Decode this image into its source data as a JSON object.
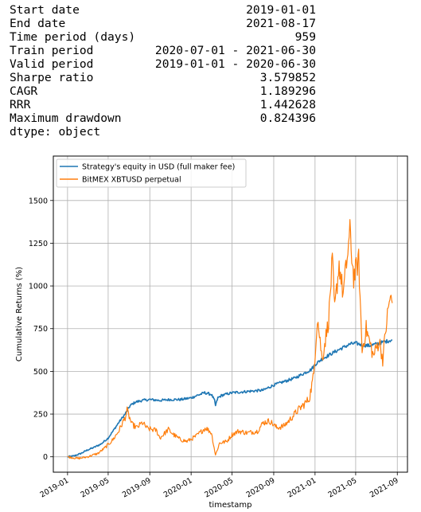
{
  "stats": {
    "rows": [
      {
        "label": "Start date",
        "value": "2019-01-01"
      },
      {
        "label": "End date",
        "value": "2021-08-17"
      },
      {
        "label": "Time period (days)",
        "value": "959"
      },
      {
        "label": "Train period",
        "value": "2020-07-01 - 2021-06-30"
      },
      {
        "label": "Valid period",
        "value": "2019-01-01 - 2020-06-30"
      },
      {
        "label": "Sharpe ratio",
        "value": "3.579852"
      },
      {
        "label": "CAGR",
        "value": "1.189296"
      },
      {
        "label": "RRR",
        "value": "1.442628"
      },
      {
        "label": "Maximum drawdown",
        "value": "0.824396"
      }
    ],
    "dtype": "dtype: object"
  },
  "chart_data": {
    "type": "line",
    "xlabel": "timestamp",
    "ylabel": "Cumulative Returns (%)",
    "x_ticks": [
      "2019-01",
      "2019-05",
      "2019-09",
      "2020-01",
      "2020-05",
      "2020-09",
      "2021-01",
      "2021-05",
      "2021-09"
    ],
    "y_ticks": [
      0,
      250,
      500,
      750,
      1000,
      1250,
      1500
    ],
    "xlim": [
      "2018-11-20",
      "2021-10-01"
    ],
    "ylim": [
      -90,
      1760
    ],
    "grid": true,
    "legend_position": "top-left",
    "series": [
      {
        "name": "Strategy's equity in USD (full maker fee)",
        "color": "#1f77b4",
        "points": [
          [
            "2019-01-01",
            0
          ],
          [
            "2019-01-20",
            5
          ],
          [
            "2019-02-10",
            20
          ],
          [
            "2019-03-01",
            40
          ],
          [
            "2019-03-20",
            55
          ],
          [
            "2019-04-10",
            75
          ],
          [
            "2019-05-01",
            110
          ],
          [
            "2019-05-15",
            150
          ],
          [
            "2019-06-01",
            200
          ],
          [
            "2019-06-20",
            250
          ],
          [
            "2019-07-05",
            300
          ],
          [
            "2019-07-20",
            320
          ],
          [
            "2019-08-10",
            330
          ],
          [
            "2019-09-01",
            335
          ],
          [
            "2019-10-01",
            330
          ],
          [
            "2019-11-01",
            335
          ],
          [
            "2019-12-01",
            335
          ],
          [
            "2020-01-01",
            345
          ],
          [
            "2020-01-20",
            360
          ],
          [
            "2020-02-10",
            375
          ],
          [
            "2020-03-01",
            365
          ],
          [
            "2020-03-10",
            330
          ],
          [
            "2020-03-13",
            300
          ],
          [
            "2020-03-20",
            345
          ],
          [
            "2020-04-01",
            360
          ],
          [
            "2020-05-01",
            375
          ],
          [
            "2020-06-01",
            380
          ],
          [
            "2020-07-01",
            385
          ],
          [
            "2020-08-01",
            390
          ],
          [
            "2020-09-01",
            420
          ],
          [
            "2020-10-01",
            440
          ],
          [
            "2020-11-01",
            460
          ],
          [
            "2020-12-01",
            490
          ],
          [
            "2020-12-20",
            510
          ],
          [
            "2021-01-01",
            540
          ],
          [
            "2021-01-20",
            570
          ],
          [
            "2021-02-15",
            600
          ],
          [
            "2021-03-15",
            630
          ],
          [
            "2021-04-15",
            660
          ],
          [
            "2021-05-01",
            665
          ],
          [
            "2021-05-20",
            655
          ],
          [
            "2021-06-10",
            650
          ],
          [
            "2021-07-01",
            660
          ],
          [
            "2021-07-20",
            670
          ],
          [
            "2021-08-17",
            685
          ]
        ]
      },
      {
        "name": "BitMEX XBTUSD perpetual",
        "color": "#ff7f0e",
        "points": [
          [
            "2019-01-01",
            0
          ],
          [
            "2019-02-01",
            -10
          ],
          [
            "2019-03-01",
            0
          ],
          [
            "2019-04-01",
            20
          ],
          [
            "2019-04-20",
            50
          ],
          [
            "2019-05-15",
            100
          ],
          [
            "2019-06-01",
            150
          ],
          [
            "2019-06-20",
            230
          ],
          [
            "2019-06-26",
            270
          ],
          [
            "2019-07-10",
            190
          ],
          [
            "2019-07-25",
            170
          ],
          [
            "2019-08-10",
            200
          ],
          [
            "2019-08-25",
            165
          ],
          [
            "2019-09-20",
            155
          ],
          [
            "2019-10-01",
            110
          ],
          [
            "2019-10-26",
            160
          ],
          [
            "2019-11-10",
            130
          ],
          [
            "2019-12-01",
            100
          ],
          [
            "2019-12-20",
            90
          ],
          [
            "2020-01-15",
            120
          ],
          [
            "2020-02-13",
            170
          ],
          [
            "2020-03-01",
            140
          ],
          [
            "2020-03-13",
            10
          ],
          [
            "2020-03-25",
            80
          ],
          [
            "2020-04-15",
            90
          ],
          [
            "2020-05-01",
            130
          ],
          [
            "2020-05-20",
            150
          ],
          [
            "2020-06-15",
            140
          ],
          [
            "2020-07-15",
            150
          ],
          [
            "2020-08-01",
            200
          ],
          [
            "2020-08-20",
            210
          ],
          [
            "2020-09-10",
            170
          ],
          [
            "2020-10-01",
            180
          ],
          [
            "2020-10-20",
            220
          ],
          [
            "2020-11-10",
            270
          ],
          [
            "2020-12-01",
            310
          ],
          [
            "2020-12-15",
            340
          ],
          [
            "2020-12-28",
            480
          ],
          [
            "2021-01-08",
            820
          ],
          [
            "2021-01-22",
            570
          ],
          [
            "2021-02-10",
            800
          ],
          [
            "2021-02-21",
            1150
          ],
          [
            "2021-02-28",
            860
          ],
          [
            "2021-03-13",
            1130
          ],
          [
            "2021-03-25",
            950
          ],
          [
            "2021-04-14",
            1310
          ],
          [
            "2021-04-25",
            1050
          ],
          [
            "2021-05-10",
            1150
          ],
          [
            "2021-05-20",
            620
          ],
          [
            "2021-06-01",
            750
          ],
          [
            "2021-06-22",
            590
          ],
          [
            "2021-07-10",
            680
          ],
          [
            "2021-07-20",
            570
          ],
          [
            "2021-08-01",
            800
          ],
          [
            "2021-08-10",
            930
          ],
          [
            "2021-08-17",
            900
          ]
        ]
      }
    ]
  }
}
